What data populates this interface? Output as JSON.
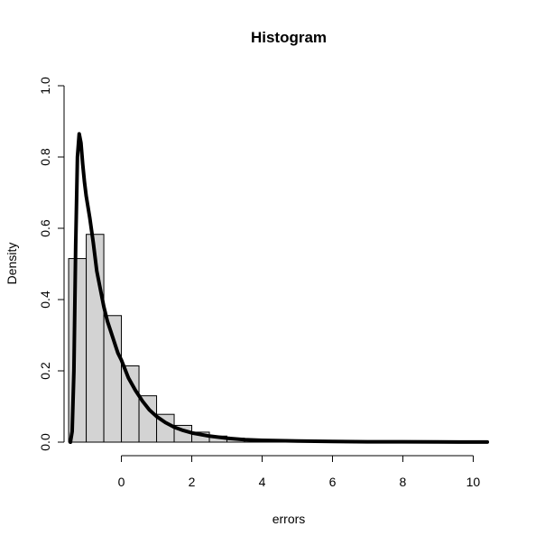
{
  "chart_data": {
    "type": "bar",
    "title": "Histogram",
    "xlabel": "errors",
    "ylabel": "Density",
    "xlim": [
      -1.63,
      10.63
    ],
    "ylim": [
      0,
      1
    ],
    "x_ticks": [
      0,
      2,
      4,
      6,
      8,
      10
    ],
    "y_ticks": [
      0.0,
      0.2,
      0.4,
      0.6,
      0.8,
      1.0
    ],
    "x_tick_labels": [
      "0",
      "2",
      "4",
      "6",
      "8",
      "10"
    ],
    "y_tick_labels": [
      "0.0",
      "0.2",
      "0.4",
      "0.6",
      "0.8",
      "1.0"
    ],
    "grid": false,
    "legend": false,
    "histogram": {
      "breaks": [
        -1.5,
        -1.0,
        -0.5,
        0.0,
        0.5,
        1.0,
        1.5,
        2.0,
        2.5,
        3.0,
        3.5,
        4.0,
        4.5,
        5.0,
        5.5,
        6.0
      ],
      "density": [
        0.515,
        0.583,
        0.355,
        0.214,
        0.13,
        0.078,
        0.047,
        0.028,
        0.017,
        0.011,
        0.007,
        0.004,
        0.003,
        0.002,
        0.001
      ]
    },
    "density_curve": {
      "x": [
        -1.45,
        -1.4,
        -1.35,
        -1.3,
        -1.25,
        -1.2,
        -1.15,
        -1.1,
        -1.05,
        -1.0,
        -0.9,
        -0.8,
        -0.7,
        -0.6,
        -0.5,
        -0.4,
        -0.3,
        -0.2,
        -0.1,
        0.0,
        0.2,
        0.4,
        0.6,
        0.8,
        1.0,
        1.25,
        1.5,
        1.75,
        2.0,
        2.5,
        3.0,
        3.5,
        4.0,
        5.0,
        6.0,
        7.0,
        8.0,
        9.0,
        10.0,
        10.4
      ],
      "y": [
        0.0,
        0.03,
        0.2,
        0.55,
        0.8,
        0.865,
        0.84,
        0.78,
        0.73,
        0.69,
        0.63,
        0.56,
        0.48,
        0.43,
        0.38,
        0.34,
        0.31,
        0.28,
        0.25,
        0.23,
        0.18,
        0.145,
        0.115,
        0.09,
        0.072,
        0.055,
        0.042,
        0.033,
        0.026,
        0.017,
        0.011,
        0.007,
        0.005,
        0.003,
        0.002,
        0.001,
        0.001,
        0.0005,
        0.0003,
        0.0002
      ]
    }
  }
}
